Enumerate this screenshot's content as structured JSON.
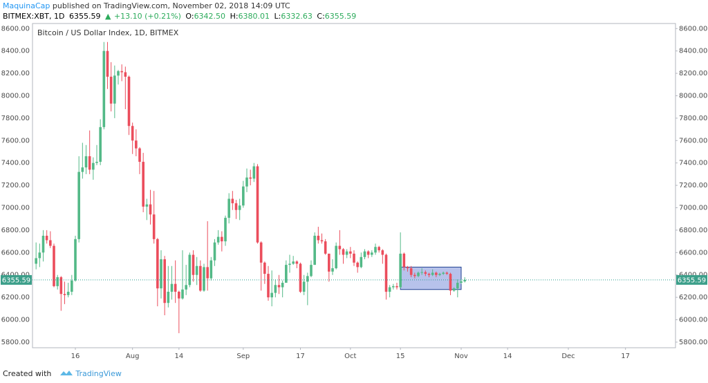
{
  "header": {
    "author": "MaquinaCap",
    "published": "published on TradingView.com, November 02, 2018 14:09 UTC",
    "symbol": "BITMEX:XBT, 1D",
    "last": "6355.59",
    "arrow": "▲",
    "change": "+13.10 (+0.21%)",
    "o_label": "O:",
    "o": "6342.50",
    "h_label": "H:",
    "h": "6380.01",
    "l_label": "L:",
    "l": "6332.63",
    "c_label": "C:",
    "c": "6355.59"
  },
  "footer": {
    "created": "Created with",
    "brand": "TradingView"
  },
  "chart_data": {
    "type": "candlestick",
    "title": "Bitcoin / US Dollar Index, 1D, BITMEX",
    "up_color": "#53b987",
    "down_color": "#eb4d5c",
    "grid": false,
    "x": [
      "2018-07-05",
      "2018-07-06",
      "2018-07-07",
      "2018-07-08",
      "2018-07-09",
      "2018-07-10",
      "2018-07-11",
      "2018-07-12",
      "2018-07-13",
      "2018-07-14",
      "2018-07-15",
      "2018-07-16",
      "2018-07-17",
      "2018-07-18",
      "2018-07-19",
      "2018-07-20",
      "2018-07-21",
      "2018-07-22",
      "2018-07-23",
      "2018-07-24",
      "2018-07-25",
      "2018-07-26",
      "2018-07-27",
      "2018-07-28",
      "2018-07-29",
      "2018-07-30",
      "2018-07-31",
      "2018-08-01",
      "2018-08-02",
      "2018-08-03",
      "2018-08-04",
      "2018-08-05",
      "2018-08-06",
      "2018-08-07",
      "2018-08-08",
      "2018-08-09",
      "2018-08-10",
      "2018-08-11",
      "2018-08-12",
      "2018-08-13",
      "2018-08-14",
      "2018-08-15",
      "2018-08-16",
      "2018-08-17",
      "2018-08-18",
      "2018-08-19",
      "2018-08-20",
      "2018-08-21",
      "2018-08-22",
      "2018-08-23",
      "2018-08-24",
      "2018-08-25",
      "2018-08-26",
      "2018-08-27",
      "2018-08-28",
      "2018-08-29",
      "2018-08-30",
      "2018-08-31",
      "2018-09-01",
      "2018-09-02",
      "2018-09-03",
      "2018-09-04",
      "2018-09-05",
      "2018-09-06",
      "2018-09-07",
      "2018-09-08",
      "2018-09-09",
      "2018-09-10",
      "2018-09-11",
      "2018-09-12",
      "2018-09-13",
      "2018-09-14",
      "2018-09-15",
      "2018-09-16",
      "2018-09-17",
      "2018-09-18",
      "2018-09-19",
      "2018-09-20",
      "2018-09-21",
      "2018-09-22",
      "2018-09-23",
      "2018-09-24",
      "2018-09-25",
      "2018-09-26",
      "2018-09-27",
      "2018-09-28",
      "2018-09-29",
      "2018-09-30",
      "2018-10-01",
      "2018-10-02",
      "2018-10-03",
      "2018-10-04",
      "2018-10-05",
      "2018-10-06",
      "2018-10-07",
      "2018-10-08",
      "2018-10-09",
      "2018-10-10",
      "2018-10-11",
      "2018-10-12",
      "2018-10-13",
      "2018-10-14",
      "2018-10-15",
      "2018-10-16",
      "2018-10-17",
      "2018-10-18",
      "2018-10-19",
      "2018-10-20",
      "2018-10-21",
      "2018-10-22",
      "2018-10-23",
      "2018-10-24",
      "2018-10-25",
      "2018-10-26",
      "2018-10-27",
      "2018-10-28",
      "2018-10-29",
      "2018-10-30",
      "2018-10-31",
      "2018-11-01",
      "2018-11-02"
    ],
    "open": [
      6500,
      6550,
      6600,
      6750,
      6710,
      6660,
      6300,
      6380,
      6230,
      6220,
      6250,
      6350,
      6720,
      7320,
      7360,
      7460,
      7340,
      7400,
      7410,
      7720,
      8400,
      8170,
      7930,
      8180,
      8220,
      8210,
      8170,
      7730,
      7600,
      7530,
      7410,
      7010,
      7030,
      6940,
      6720,
      6280,
      6540,
      6150,
      6250,
      6320,
      6250,
      6190,
      6270,
      6310,
      6580,
      6400,
      6480,
      6260,
      6470,
      6370,
      6530,
      6690,
      6740,
      6700,
      6910,
      7080,
      7040,
      6980,
      7020,
      7190,
      7270,
      7260,
      7370,
      6690,
      6510,
      6410,
      6200,
      6240,
      6310,
      6290,
      6330,
      6490,
      6500,
      6520,
      6500,
      6250,
      6340,
      6390,
      6490,
      6750,
      6710,
      6700,
      6590,
      6430,
      6460,
      6660,
      6630,
      6580,
      6610,
      6590,
      6510,
      6470,
      6560,
      6610,
      6580,
      6600,
      6650,
      6620,
      6580,
      6250,
      6290,
      6300,
      6290,
      6590,
      6470,
      6460,
      6400,
      6390,
      6420,
      6425,
      6410,
      6400,
      6420,
      6400,
      6410,
      6420,
      6410,
      6260,
      6280,
      6330,
      6342.5
    ],
    "high": [
      6690,
      6680,
      6800,
      6800,
      6790,
      6680,
      6400,
      6390,
      6340,
      6330,
      6400,
      6750,
      7460,
      7580,
      7560,
      7690,
      7450,
      7560,
      7790,
      8480,
      8480,
      8300,
      8270,
      8230,
      8280,
      8260,
      8180,
      7760,
      7700,
      7540,
      7490,
      7080,
      7160,
      7150,
      6730,
      6620,
      6570,
      6480,
      6480,
      6530,
      6260,
      6620,
      6490,
      6600,
      6620,
      6560,
      6530,
      6500,
      6880,
      6560,
      6720,
      6800,
      6790,
      6930,
      7130,
      7150,
      7070,
      7080,
      7240,
      7350,
      7340,
      7400,
      7390,
      6700,
      6520,
      6480,
      6440,
      6360,
      6400,
      6350,
      6530,
      6580,
      6570,
      6530,
      6510,
      6400,
      6420,
      6530,
      6780,
      6830,
      6770,
      6720,
      6590,
      6540,
      6690,
      6800,
      6640,
      6630,
      6650,
      6620,
      6520,
      6600,
      6630,
      6620,
      6620,
      6680,
      6660,
      6630,
      6590,
      6310,
      6320,
      6330,
      6780,
      6600,
      6480,
      6480,
      6420,
      6430,
      6460,
      6440,
      6420,
      6450,
      6430,
      6420,
      6430,
      6430,
      6420,
      6290,
      6360,
      6360,
      6380.01
    ],
    "low": [
      6450,
      6470,
      6520,
      6680,
      6640,
      6290,
      6270,
      6080,
      6140,
      6200,
      6220,
      6340,
      6690,
      7260,
      7300,
      7300,
      7250,
      7380,
      7380,
      7700,
      8060,
      7860,
      7800,
      8100,
      8130,
      7880,
      7650,
      7480,
      7460,
      7300,
      6960,
      6890,
      6850,
      6680,
      6120,
      6190,
      6040,
      6110,
      6180,
      6150,
      5880,
      6180,
      6220,
      6290,
      6340,
      6310,
      6250,
      6250,
      6260,
      6350,
      6480,
      6670,
      6610,
      6660,
      6860,
      6980,
      6900,
      6890,
      7000,
      7140,
      7200,
      7230,
      6680,
      6260,
      6320,
      6170,
      6120,
      6200,
      6230,
      6200,
      6330,
      6420,
      6490,
      6460,
      6240,
      6220,
      6130,
      6380,
      6490,
      6680,
      6680,
      6580,
      6340,
      6400,
      6450,
      6580,
      6500,
      6550,
      6550,
      6480,
      6420,
      6460,
      6540,
      6550,
      6560,
      6580,
      6600,
      6500,
      6180,
      6200,
      6270,
      6270,
      6280,
      6440,
      6430,
      6380,
      6370,
      6380,
      6400,
      6390,
      6380,
      6390,
      6380,
      6390,
      6400,
      6400,
      6220,
      6250,
      6200,
      6320,
      6332.63
    ],
    "close": [
      6550,
      6600,
      6750,
      6710,
      6660,
      6300,
      6380,
      6230,
      6220,
      6250,
      6350,
      6720,
      7320,
      7360,
      7460,
      7340,
      7400,
      7410,
      7720,
      8400,
      8170,
      7930,
      8180,
      8220,
      8210,
      8170,
      7730,
      7600,
      7530,
      7410,
      7010,
      7030,
      6940,
      6720,
      6280,
      6540,
      6150,
      6250,
      6320,
      6250,
      6190,
      6270,
      6310,
      6580,
      6400,
      6480,
      6260,
      6470,
      6370,
      6530,
      6690,
      6740,
      6700,
      6910,
      7080,
      7040,
      6980,
      7020,
      7190,
      7270,
      7260,
      7370,
      6690,
      6510,
      6410,
      6200,
      6240,
      6310,
      6290,
      6330,
      6490,
      6500,
      6520,
      6500,
      6250,
      6340,
      6390,
      6490,
      6750,
      6710,
      6700,
      6590,
      6430,
      6460,
      6660,
      6630,
      6580,
      6610,
      6590,
      6510,
      6470,
      6560,
      6610,
      6580,
      6600,
      6650,
      6620,
      6580,
      6250,
      6290,
      6300,
      6290,
      6590,
      6470,
      6460,
      6400,
      6390,
      6420,
      6425,
      6410,
      6400,
      6420,
      6400,
      6410,
      6420,
      6410,
      6260,
      6280,
      6330,
      6342.5,
      6355.59
    ],
    "last_price": 6355.59,
    "box": {
      "x": [
        "2018-10-15",
        "2018-11-01"
      ],
      "y": [
        6270,
        6470
      ]
    },
    "xlim": [
      "2018-07-04",
      "2018-12-31"
    ],
    "xticks": [
      {
        "value": "2018-07-16",
        "label": "16"
      },
      {
        "value": "2018-08-01",
        "label": "Aug"
      },
      {
        "value": "2018-08-14",
        "label": "14"
      },
      {
        "value": "2018-09-01",
        "label": "Sep"
      },
      {
        "value": "2018-09-17",
        "label": "17"
      },
      {
        "value": "2018-10-01",
        "label": "Oct"
      },
      {
        "value": "2018-10-15",
        "label": "15"
      },
      {
        "value": "2018-11-01",
        "label": "Nov"
      },
      {
        "value": "2018-11-14",
        "label": "14"
      },
      {
        "value": "2018-12-01",
        "label": "Dec"
      },
      {
        "value": "2018-12-17",
        "label": "17"
      }
    ],
    "ylim": [
      5750,
      8645
    ],
    "yticks": [
      {
        "value": 5800,
        "label": "5800.00"
      },
      {
        "value": 6000,
        "label": "6000.00"
      },
      {
        "value": 6200,
        "label": "6200.00"
      },
      {
        "value": 6400,
        "label": "6400.00"
      },
      {
        "value": 6600,
        "label": "6600.00"
      },
      {
        "value": 6800,
        "label": "6800.00"
      },
      {
        "value": 7000,
        "label": "7000.00"
      },
      {
        "value": 7200,
        "label": "7200.00"
      },
      {
        "value": 7400,
        "label": "7400.00"
      },
      {
        "value": 7600,
        "label": "7600.00"
      },
      {
        "value": 7800,
        "label": "7800.00"
      },
      {
        "value": 8000,
        "label": "8000.00"
      },
      {
        "value": 8200,
        "label": "8200.00"
      },
      {
        "value": 8400,
        "label": "8400.00"
      },
      {
        "value": 8600,
        "label": "8600.00"
      }
    ]
  }
}
